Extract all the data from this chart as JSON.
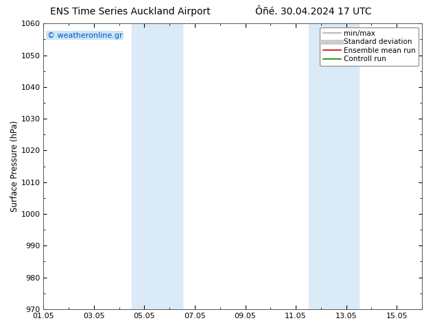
{
  "title_left": "ENS Time Series Auckland Airport",
  "title_right": "Ôñé. 30.04.2024 17 UTC",
  "ylabel": "Surface Pressure (hPa)",
  "ylim": [
    970,
    1060
  ],
  "yticks": [
    970,
    980,
    990,
    1000,
    1010,
    1020,
    1030,
    1040,
    1050,
    1060
  ],
  "xtick_labels": [
    "01.05",
    "03.05",
    "05.05",
    "07.05",
    "09.05",
    "11.05",
    "13.05",
    "15.05"
  ],
  "xtick_positions": [
    0,
    2,
    4,
    6,
    8,
    10,
    12,
    14
  ],
  "xlim": [
    0,
    15
  ],
  "shaded_bands": [
    {
      "x_start": 3.5,
      "x_end": 5.5,
      "color": "#daeaf7"
    },
    {
      "x_start": 10.5,
      "x_end": 12.5,
      "color": "#daeaf7"
    }
  ],
  "watermark_text": "© weatheronline.gr",
  "watermark_color": "#0055cc",
  "watermark_bg": "#cce5f5",
  "legend_items": [
    {
      "label": "min/max",
      "color": "#aaaaaa",
      "lw": 1.2,
      "type": "line"
    },
    {
      "label": "Standard deviation",
      "color": "#cccccc",
      "lw": 5,
      "type": "line"
    },
    {
      "label": "Ensemble mean run",
      "color": "#cc0000",
      "lw": 1.2,
      "type": "line"
    },
    {
      "label": "Controll run",
      "color": "#008800",
      "lw": 1.2,
      "type": "line"
    }
  ],
  "bg_color": "#ffffff",
  "title_fontsize": 10,
  "tick_fontsize": 8,
  "ylabel_fontsize": 8.5,
  "legend_fontsize": 7.5
}
